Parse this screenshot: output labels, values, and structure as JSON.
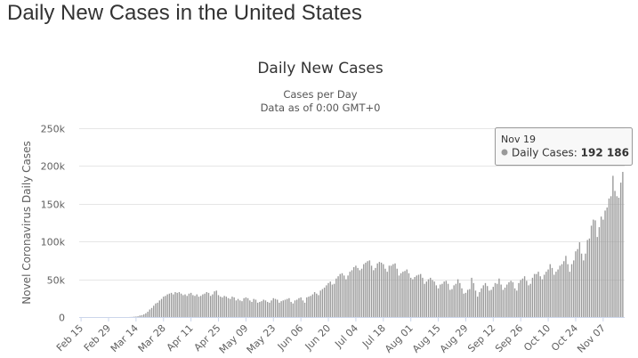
{
  "page": {
    "heading": "Daily New Cases in the United States"
  },
  "chart_data": {
    "type": "bar",
    "title": "Daily New Cases",
    "subtitle_lines": [
      "Cases per Day",
      "Data as of 0:00 GMT+0"
    ],
    "ylabel": "Novel Coronavirus Daily Cases",
    "xlabel": "",
    "ylim": [
      0,
      250000
    ],
    "yticks": [
      0,
      50000,
      100000,
      150000,
      200000,
      250000
    ],
    "ytick_labels": [
      "0",
      "50k",
      "100k",
      "150k",
      "200k",
      "250k"
    ],
    "xticks": [
      "Feb 15",
      "Feb 29",
      "Mar 14",
      "Mar 28",
      "Apr 11",
      "Apr 25",
      "May 09",
      "May 23",
      "Jun 06",
      "Jun 20",
      "Jul 04",
      "Jul 18",
      "Aug 01",
      "Aug 15",
      "Aug 29",
      "Sep 12",
      "Sep 26",
      "Oct 10",
      "Oct 24",
      "Nov 07"
    ],
    "x_start": "Feb 15",
    "x_end": "Nov 19",
    "grid": true,
    "bar_color": "#999999",
    "series": [
      {
        "name": "Daily Cases",
        "values": [
          0,
          0,
          0,
          0,
          0,
          0,
          0,
          0,
          0,
          0,
          0,
          0,
          0,
          0,
          0,
          0,
          0,
          0,
          0,
          0,
          0,
          0,
          0,
          0,
          0,
          100,
          200,
          500,
          700,
          1000,
          2000,
          2500,
          3500,
          5000,
          7000,
          10000,
          12000,
          15000,
          18000,
          19000,
          22000,
          24000,
          27000,
          28000,
          30000,
          31000,
          32000,
          30000,
          33000,
          32000,
          33000,
          31000,
          29000,
          30000,
          28000,
          31000,
          32000,
          29000,
          28000,
          30000,
          27000,
          28000,
          30000,
          31000,
          33000,
          32000,
          28000,
          30000,
          34000,
          35000,
          29000,
          27000,
          26000,
          28000,
          27000,
          25000,
          24000,
          27000,
          26000,
          22000,
          24000,
          22000,
          21000,
          25000,
          26000,
          25000,
          22000,
          20000,
          24000,
          23000,
          19000,
          20000,
          21000,
          23000,
          22000,
          20000,
          19000,
          22000,
          25000,
          24000,
          23000,
          19000,
          21000,
          22000,
          23000,
          24000,
          25000,
          20000,
          18000,
          22000,
          23000,
          25000,
          26000,
          22000,
          19000,
          26000,
          27000,
          28000,
          30000,
          33000,
          31000,
          29000,
          35000,
          37000,
          39000,
          42000,
          45000,
          47000,
          43000,
          44000,
          51000,
          54000,
          57000,
          58000,
          55000,
          50000,
          55000,
          60000,
          62000,
          66000,
          68000,
          65000,
          62000,
          64000,
          70000,
          72000,
          74000,
          75000,
          68000,
          62000,
          65000,
          71000,
          73000,
          72000,
          70000,
          64000,
          60000,
          68000,
          68000,
          70000,
          71000,
          64000,
          55000,
          58000,
          60000,
          61000,
          63000,
          58000,
          52000,
          50000,
          53000,
          55000,
          56000,
          57000,
          52000,
          44000,
          47000,
          50000,
          52000,
          49000,
          47000,
          42000,
          38000,
          43000,
          44000,
          47000,
          48000,
          44000,
          36000,
          37000,
          42000,
          44000,
          50000,
          45000,
          38000,
          31000,
          32000,
          36000,
          37000,
          52000,
          45000,
          35000,
          27000,
          33000,
          38000,
          42000,
          45000,
          41000,
          35000,
          36000,
          40000,
          45000,
          44000,
          51000,
          43000,
          36000,
          39000,
          43000,
          46000,
          48000,
          46000,
          38000,
          35000,
          45000,
          49000,
          51000,
          54000,
          48000,
          42000,
          44000,
          52000,
          57000,
          57000,
          60000,
          54000,
          50000,
          56000,
          60000,
          63000,
          70000,
          65000,
          56000,
          60000,
          63000,
          68000,
          70000,
          74000,
          81000,
          70000,
          60000,
          70000,
          75000,
          87000,
          90000,
          99000,
          84000,
          75000,
          84000,
          102000,
          104000,
          121000,
          129000,
          128000,
          106000,
          119000,
          133000,
          129000,
          141000,
          145000,
          157000,
          160000,
          187000,
          167000,
          160000,
          158000,
          178000,
          192186
        ]
      }
    ],
    "tooltip": {
      "date": "Nov 19",
      "series": "Daily Cases",
      "value": "192 186"
    }
  }
}
